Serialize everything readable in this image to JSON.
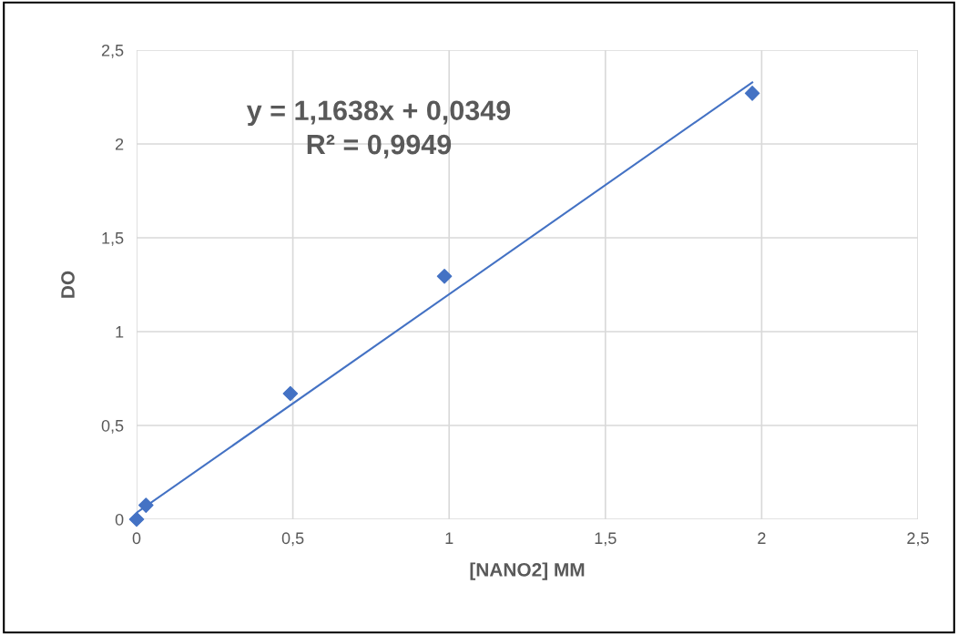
{
  "chart_data": {
    "type": "scatter",
    "xlabel": "[NANO2] MM",
    "ylabel": "DO",
    "series": [
      {
        "color": "#4472c4",
        "marker": "diamond",
        "x": [
          0,
          0.03,
          0.492,
          0.985,
          1.97
        ],
        "values": [
          0,
          0.075,
          0.67,
          1.295,
          2.27
        ]
      },
      {
        "type": "line",
        "color": "#4472c4",
        "marker": "none",
        "x": [
          0,
          1.97
        ],
        "values": [
          0.035,
          2.328
        ]
      }
    ],
    "annotations": [
      "y = 1,1638x + 0,0349\nR² = 0,9949"
    ],
    "xlim": [
      0,
      2.5
    ],
    "xticks": [
      0,
      {
        "value": 0.5,
        "label": "0,5"
      },
      1,
      {
        "value": 1.5,
        "label": "1,5"
      },
      2,
      {
        "value": 2.5,
        "label": "2,5"
      }
    ],
    "ylim": [
      0,
      2.5
    ],
    "yticks": [
      0,
      {
        "value": 0.5,
        "label": "0,5"
      },
      1,
      {
        "value": 1.5,
        "label": "1,5"
      },
      2,
      {
        "value": 2.5,
        "label": "2,5"
      }
    ],
    "grid": true
  }
}
